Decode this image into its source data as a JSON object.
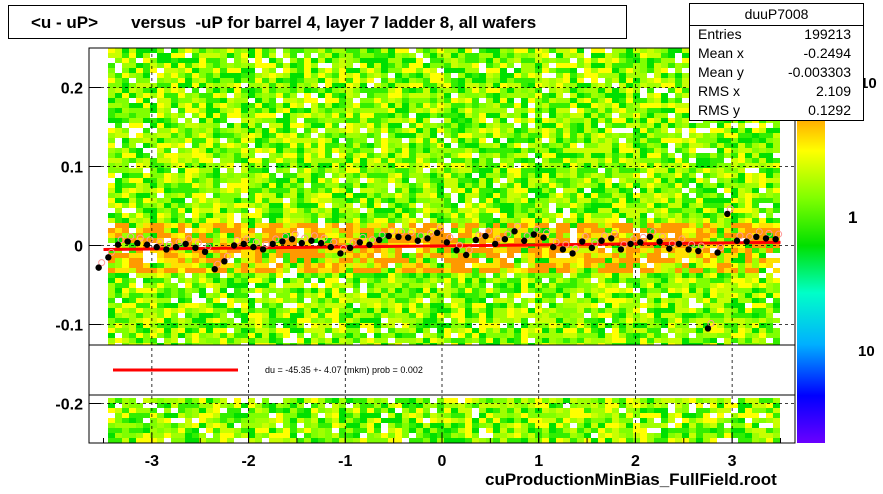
{
  "title": "<u - uP>       versus  -uP for barrel 4, layer 7 ladder 8, all wafers",
  "stats": {
    "name": "duuP7008",
    "rows": [
      {
        "label": "Entries",
        "value": "199213"
      },
      {
        "label": "Mean x",
        "value": "-0.2494"
      },
      {
        "label": "Mean y",
        "value": "-0.003303"
      },
      {
        "label": "RMS x",
        "value": "2.109"
      },
      {
        "label": "RMS y",
        "value": "0.1292"
      }
    ]
  },
  "footer": "cuProductionMinBias_FullField.root",
  "legend": {
    "fit_text": "du =  -45.35 +-  4.07 (mkm) prob = 0.002"
  },
  "colorbar": {
    "tick_labels": [
      "10",
      "1",
      "10"
    ]
  },
  "colors": {
    "fit_line": "#ff0000",
    "points": "#000000",
    "open_points": "#ff9999"
  },
  "chart_data": {
    "type": "scatter",
    "xlim": [
      -3.65,
      3.65
    ],
    "ylim": [
      -0.25,
      0.25
    ],
    "x_ticks": [
      -3,
      -2,
      -1,
      0,
      1,
      2,
      3
    ],
    "y_ticks": [
      -0.2,
      -0.1,
      0,
      0.1,
      0.2
    ],
    "x_tick_labels": [
      "-3",
      "-2",
      "-1",
      "0",
      "1",
      "2",
      "3"
    ],
    "y_tick_labels": [
      "-0.2",
      "-0.1",
      "0",
      "0.1",
      "0.2"
    ],
    "grid": true,
    "fit_line": {
      "x": [
        -3.5,
        3.5
      ],
      "y": [
        -0.005,
        0.004
      ]
    },
    "profile_points": {
      "x": [
        -3.55,
        -3.45,
        -3.35,
        -3.25,
        -3.15,
        -3.05,
        -2.95,
        -2.85,
        -2.75,
        -2.65,
        -2.55,
        -2.45,
        -2.35,
        -2.25,
        -2.15,
        -2.05,
        -1.95,
        -1.85,
        -1.75,
        -1.65,
        -1.55,
        -1.45,
        -1.35,
        -1.25,
        -1.15,
        -1.05,
        -0.95,
        -0.85,
        -0.75,
        -0.65,
        -0.55,
        -0.45,
        -0.35,
        -0.25,
        -0.15,
        -0.05,
        0.05,
        0.15,
        0.25,
        0.35,
        0.45,
        0.55,
        0.65,
        0.75,
        0.85,
        0.95,
        1.05,
        1.15,
        1.25,
        1.35,
        1.45,
        1.55,
        1.65,
        1.75,
        1.85,
        1.95,
        2.05,
        2.15,
        2.25,
        2.35,
        2.45,
        2.55,
        2.65,
        2.75,
        2.85,
        2.95,
        3.05,
        3.15,
        3.25,
        3.35,
        3.45
      ],
      "y": [
        -0.028,
        -0.015,
        0.001,
        0.005,
        0.003,
        0.001,
        -0.002,
        -0.005,
        -0.002,
        0.002,
        -0.003,
        -0.008,
        -0.03,
        -0.02,
        0.0,
        0.002,
        -0.002,
        -0.005,
        0.002,
        0.005,
        0.008,
        0.003,
        0.006,
        0.003,
        -0.002,
        -0.01,
        -0.003,
        0.004,
        0.001,
        0.007,
        0.012,
        0.011,
        0.01,
        0.006,
        0.009,
        0.016,
        0.004,
        -0.006,
        -0.012,
        0.007,
        0.012,
        0.002,
        0.008,
        0.018,
        0.006,
        0.014,
        0.01,
        -0.002,
        -0.005,
        -0.01,
        0.005,
        -0.003,
        0.006,
        0.009,
        -0.005,
        0.002,
        0.004,
        0.011,
        0.005,
        -0.004,
        0.002,
        -0.005,
        -0.007,
        -0.105,
        -0.009,
        0.04,
        0.006,
        0.005,
        0.011,
        0.009,
        0.008
      ]
    }
  }
}
